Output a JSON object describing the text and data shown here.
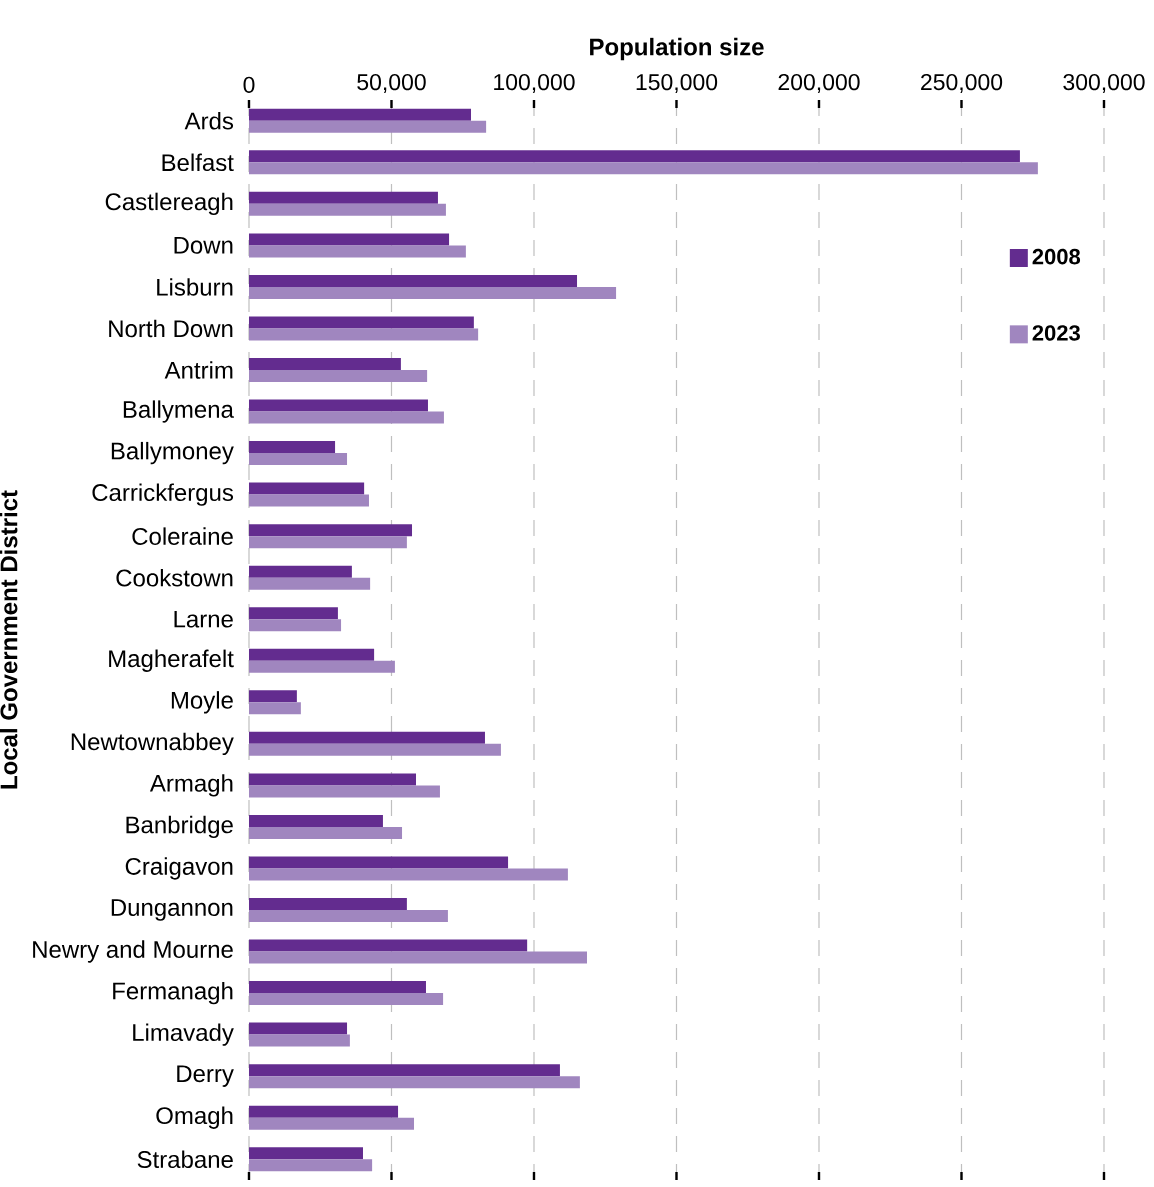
{
  "chart_data": {
    "type": "bar",
    "orientation": "horizontal",
    "xlabel": "Population size",
    "ylabel": "Local Government District",
    "categories": [
      "Ards",
      "Belfast",
      "Castlereagh",
      "Down",
      "Lisburn",
      "North Down",
      "Antrim",
      "Ballymena",
      "Ballymoney",
      "Carrickfergus",
      "Coleraine",
      "Cookstown",
      "Larne",
      "Magherafelt",
      "Moyle",
      "Newtownabbey",
      "Armagh",
      "Banbridge",
      "Craigavon",
      "Dungannon",
      "Newry and Mourne",
      "Fermanagh",
      "Limavady",
      "Derry",
      "Omagh",
      "Strabane"
    ],
    "series": [
      {
        "name": "2008",
        "color": "#632c8f",
        "values": [
          77900,
          270500,
          66300,
          70200,
          115100,
          78900,
          53300,
          62800,
          30200,
          40400,
          57200,
          36100,
          31200,
          43900,
          16800,
          82800,
          58600,
          47000,
          90900,
          55400,
          97600,
          62100,
          34400,
          109100,
          52300,
          40000
        ]
      },
      {
        "name": "2023",
        "color": "#a086bf",
        "values": [
          83200,
          276800,
          69100,
          76100,
          128800,
          80400,
          62500,
          68400,
          34400,
          42100,
          55400,
          42500,
          32300,
          51200,
          18200,
          88400,
          67000,
          53700,
          111900,
          69800,
          118600,
          68100,
          35400,
          116100,
          57900,
          43200
        ]
      }
    ],
    "xlim": [
      0,
      300000
    ],
    "xticks": [
      0,
      {
        "value": 50000,
        "label": "50,000"
      },
      {
        "value": 100000,
        "label": "100,000"
      },
      {
        "value": 150000,
        "label": "150,000"
      },
      {
        "value": 200000,
        "label": "200,000"
      },
      {
        "value": 250000,
        "label": "250,000"
      },
      {
        "value": 300000,
        "label": "300,000"
      }
    ],
    "grid": "x",
    "legend": "top right"
  }
}
